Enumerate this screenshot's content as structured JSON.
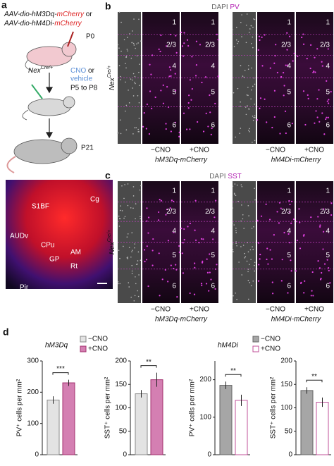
{
  "panel_a": {
    "label": "a",
    "construct_1": [
      "AAV-dio-hM3Dq-",
      "mCherry",
      " or"
    ],
    "construct_2": [
      "AAV-dio-hM4Di-",
      "mCherry"
    ],
    "age_injection": "P0",
    "genotype": [
      "Nex",
      "Cre/+"
    ],
    "treatment": [
      "CNO",
      " or",
      "vehicle"
    ],
    "age_treatment": "P5 to P8",
    "age_analysis": "P21",
    "brain_regions": [
      "Cg",
      "S1BF",
      "AUDv",
      "CPu",
      "AM",
      "GP",
      "Rt",
      "Pir"
    ]
  },
  "panel_b": {
    "label": "b",
    "stain": [
      "DAPI",
      "PV"
    ],
    "layers": [
      "1",
      "2/3",
      "4",
      "5",
      "6"
    ],
    "conditions": [
      "−CNO",
      "+CNO"
    ],
    "groups": [
      "hM3Dq-mCherry",
      "hM4Di-mCherry"
    ]
  },
  "panel_c": {
    "label": "c",
    "stain": [
      "DAPI",
      "SST"
    ],
    "layers": [
      "1",
      "2/3",
      "4",
      "5",
      "6"
    ],
    "conditions": [
      "−CNO",
      "+CNO"
    ],
    "groups": [
      "hM3Dq-mCherry",
      "hM4Di-mCherry"
    ]
  },
  "panel_d": {
    "label": "d"
  },
  "chart_data": [
    {
      "type": "bar",
      "title": "hM3Dq",
      "ylabel": "PV⁺ cells per mm²",
      "ylim": [
        0,
        300
      ],
      "yticks": [
        0,
        100,
        200,
        300
      ],
      "legend": true,
      "annotation": "***",
      "series": [
        {
          "name": "−CNO",
          "color": "#e3e3e3",
          "edge": "#888888",
          "values": [
            175
          ],
          "errors": [
            12
          ]
        },
        {
          "name": "+CNO",
          "color": "#d47fb2",
          "edge": "#a3306f",
          "values": [
            230
          ],
          "errors": [
            10
          ]
        }
      ]
    },
    {
      "type": "bar",
      "ylabel": "SST⁺ cells per mm²",
      "ylim": [
        0,
        200
      ],
      "yticks": [
        0,
        50,
        100,
        150,
        200
      ],
      "legend": false,
      "annotation": "**",
      "series": [
        {
          "name": "−CNO",
          "color": "#e3e3e3",
          "edge": "#888888",
          "values": [
            130
          ],
          "errors": [
            8
          ]
        },
        {
          "name": "+CNO",
          "color": "#d47fb2",
          "edge": "#a3306f",
          "values": [
            160
          ],
          "errors": [
            15
          ]
        }
      ]
    },
    {
      "type": "bar",
      "title": "hM4Di",
      "ylabel": "PV⁺ cells per mm²",
      "ylim": [
        0,
        250
      ],
      "yticks": [
        0,
        100,
        200
      ],
      "legend": true,
      "annotation": "**",
      "series": [
        {
          "name": "−CNO",
          "color": "#a6a6a6",
          "edge": "#666666",
          "values": [
            185
          ],
          "errors": [
            10
          ]
        },
        {
          "name": "+CNO",
          "color": "#ffffff",
          "edge": "#c0509a",
          "values": [
            145
          ],
          "errors": [
            15
          ]
        }
      ]
    },
    {
      "type": "bar",
      "ylabel": "SST⁺ cells per mm²",
      "ylim": [
        0,
        200
      ],
      "yticks": [
        0,
        50,
        100,
        150,
        200
      ],
      "legend": false,
      "annotation": "**",
      "series": [
        {
          "name": "−CNO",
          "color": "#a6a6a6",
          "edge": "#666666",
          "values": [
            137
          ],
          "errors": [
            7
          ]
        },
        {
          "name": "+CNO",
          "color": "#ffffff",
          "edge": "#c0509a",
          "values": [
            112
          ],
          "errors": [
            10
          ]
        }
      ]
    }
  ]
}
